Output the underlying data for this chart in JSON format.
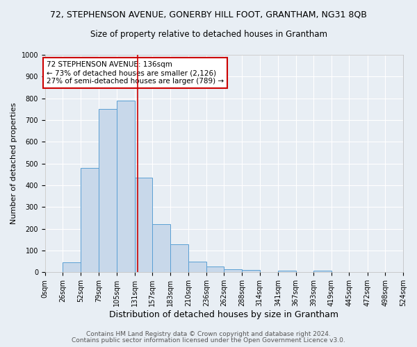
{
  "title": "72, STEPHENSON AVENUE, GONERBY HILL FOOT, GRANTHAM, NG31 8QB",
  "subtitle": "Size of property relative to detached houses in Grantham",
  "xlabel": "Distribution of detached houses by size in Grantham",
  "ylabel": "Number of detached properties",
  "bin_edges": [
    0,
    26,
    52,
    79,
    105,
    131,
    157,
    183,
    210,
    236,
    262,
    288,
    314,
    341,
    367,
    393,
    419,
    445,
    472,
    498,
    524
  ],
  "bar_heights": [
    0,
    45,
    480,
    750,
    790,
    435,
    220,
    130,
    50,
    28,
    15,
    10,
    0,
    8,
    0,
    8,
    0,
    0,
    0,
    0
  ],
  "bar_facecolor": "#c8d8ea",
  "bar_edgecolor": "#5a9fd4",
  "vline_x": 136,
  "vline_color": "#cc0000",
  "ylim": [
    0,
    1000
  ],
  "annotation_text_line1": "72 STEPHENSON AVENUE: 136sqm",
  "annotation_text_line2": "← 73% of detached houses are smaller (2,126)",
  "annotation_text_line3": "27% of semi-detached houses are larger (789) →",
  "annotation_box_color": "#ffffff",
  "annotation_box_edgecolor": "#cc0000",
  "footnote1": "Contains HM Land Registry data © Crown copyright and database right 2024.",
  "footnote2": "Contains public sector information licensed under the Open Government Licence v3.0.",
  "background_color": "#e8eef4",
  "grid_color": "#ffffff",
  "title_fontsize": 9,
  "subtitle_fontsize": 8.5,
  "xlabel_fontsize": 9,
  "ylabel_fontsize": 8,
  "tick_fontsize": 7,
  "annotation_fontsize": 7.5,
  "footnote_fontsize": 6.5
}
